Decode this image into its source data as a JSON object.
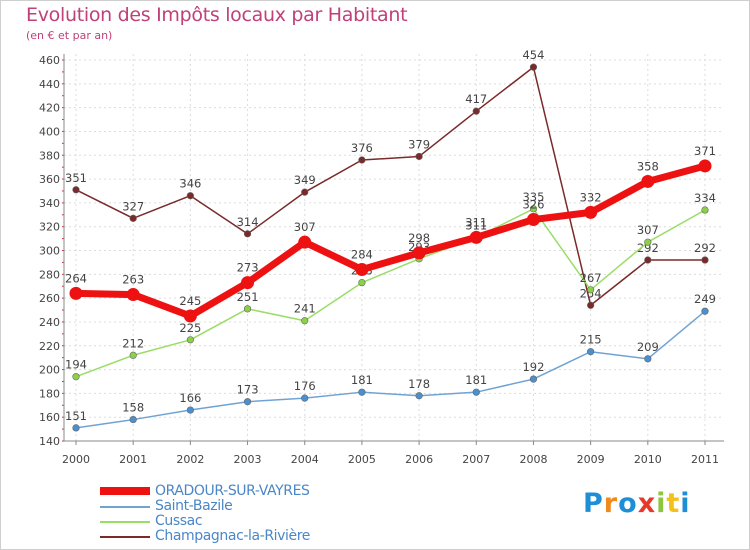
{
  "header": {
    "title": "Evolution des Impôts locaux par Habitant",
    "subtitle": "(en € et par an)"
  },
  "brand": {
    "letters": [
      "P",
      "r",
      "o",
      "x",
      "i",
      "t",
      "i"
    ],
    "colors": [
      "#1e8fd6",
      "#f08a1c",
      "#1e8fd6",
      "#e53a2a",
      "#8cc63f",
      "#f2c21a",
      "#1e8fd6"
    ]
  },
  "chart_data": {
    "type": "line",
    "title": "Evolution des Impôts locaux par Habitant",
    "subtitle": "(en € et par an)",
    "xlabel": "",
    "ylabel": "",
    "ylim": [
      140,
      460
    ],
    "yticks": [
      140,
      160,
      180,
      200,
      220,
      240,
      260,
      280,
      300,
      320,
      340,
      360,
      380,
      400,
      420,
      440,
      460
    ],
    "grid": true,
    "legend_position": "bottom-left",
    "categories": [
      "2000",
      "2001",
      "2002",
      "2003",
      "2004",
      "2005",
      "2006",
      "2007",
      "2008",
      "2009",
      "2010",
      "2011"
    ],
    "series": [
      {
        "name": "Champagnac-la-Rivière",
        "color": "#7a2a2a",
        "marker": "#7a2a2a",
        "values": [
          351,
          327,
          346,
          314,
          349,
          376,
          379,
          417,
          454,
          254,
          292,
          292
        ],
        "labels": [
          "351",
          "327",
          "346",
          "314",
          "349",
          "376",
          "379",
          "417",
          "454",
          "254",
          "292",
          "292"
        ]
      },
      {
        "name": "Cussac",
        "color": "#99dd66",
        "marker": "#8cd048",
        "values": [
          194,
          212,
          225,
          251,
          241,
          273,
          293,
          311,
          335,
          267,
          307,
          334
        ],
        "labels": [
          "194",
          "212",
          "225",
          "251",
          "241",
          "273",
          "293",
          "311",
          "335",
          "267",
          "307",
          "334"
        ]
      },
      {
        "name": "Saint-Bazile",
        "color": "#6fa3d4",
        "marker": "#4a8fd0",
        "values": [
          151,
          158,
          166,
          173,
          176,
          181,
          178,
          181,
          192,
          215,
          209,
          249
        ],
        "labels": [
          "151",
          "158",
          "166",
          "173",
          "176",
          "181",
          "178",
          "181",
          "192",
          "215",
          "209",
          "249"
        ]
      },
      {
        "name": "ORADOUR-SUR-VAYRES",
        "color": "#ee1111",
        "marker": "#ee1111",
        "values": [
          264,
          263,
          245,
          273,
          307,
          284,
          298,
          311,
          326,
          332,
          358,
          371
        ],
        "labels": [
          "264",
          "263",
          "245",
          "273",
          "307",
          "284",
          "298",
          "311",
          "326",
          "332",
          "358",
          "371"
        ]
      }
    ]
  },
  "legend": {
    "items": [
      {
        "label": "ORADOUR-SUR-VAYRES",
        "color": "#ee1111"
      },
      {
        "label": "Saint-Bazile",
        "color": "#6fa3d4"
      },
      {
        "label": "Cussac",
        "color": "#99dd66"
      },
      {
        "label": "Champagnac-la-Rivière",
        "color": "#7a2a2a"
      }
    ]
  }
}
